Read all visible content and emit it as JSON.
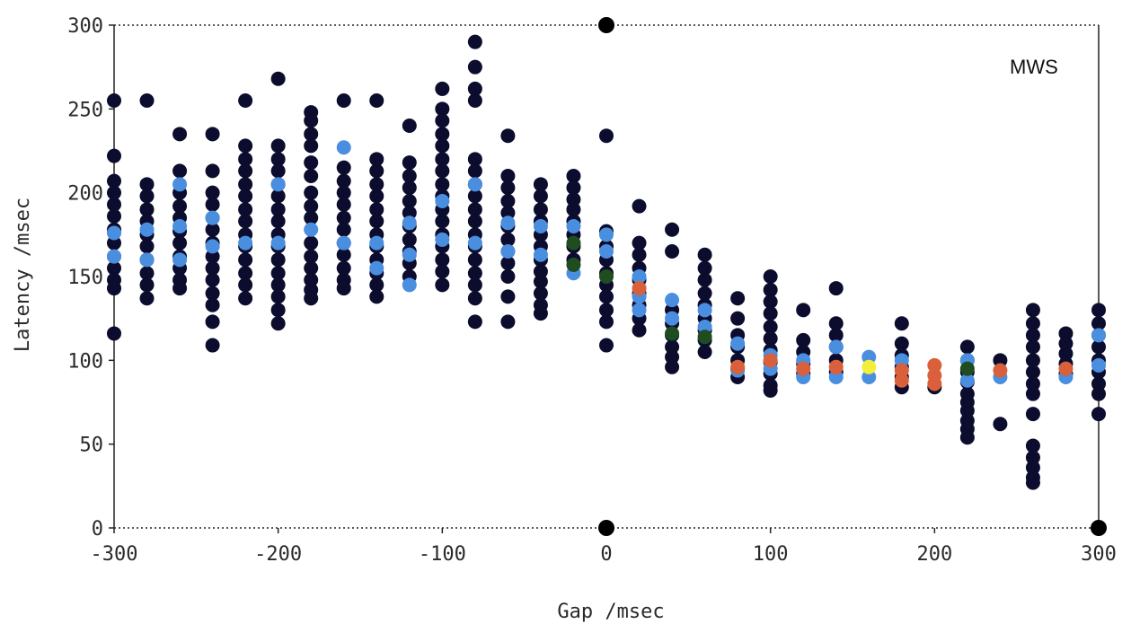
{
  "chart_data": {
    "type": "scatter",
    "title": "",
    "annotation": "MWS",
    "xlabel": "Gap /msec",
    "ylabel": "Latency /msec",
    "xlim": [
      -300,
      300
    ],
    "ylim": [
      0,
      300
    ],
    "xticks": [
      -300,
      -200,
      -100,
      0,
      100,
      200,
      300
    ],
    "xtick_labels": [
      "-300",
      "-200",
      "-100",
      "0",
      "100",
      "200",
      "300"
    ],
    "yticks": [
      0,
      50,
      100,
      150,
      200,
      250,
      300
    ],
    "ytick_labels": [
      "0",
      "50",
      "100",
      "150",
      "200",
      "250",
      "300"
    ],
    "grid": false,
    "legend": "none",
    "colors": {
      "dark": "#0b0c2e",
      "blue": "#4a8ee0",
      "green": "#1f4d1f",
      "red": "#d9603a",
      "yellow": "#f2ee3a",
      "axis": "#222222"
    },
    "columns": [
      {
        "x": -300,
        "dark": [
          255,
          222,
          207,
          200,
          193,
          186,
          178,
          170,
          162,
          155,
          148,
          143,
          116
        ],
        "blue": [
          176,
          162
        ]
      },
      {
        "x": -280,
        "dark": [
          255,
          205,
          198,
          190,
          183,
          175,
          168,
          160,
          152,
          145,
          137
        ],
        "blue": [
          178,
          160
        ]
      },
      {
        "x": -260,
        "dark": [
          235,
          213,
          200,
          192,
          185,
          177,
          170,
          162,
          155,
          148,
          143
        ],
        "blue": [
          205,
          180,
          160
        ]
      },
      {
        "x": -240,
        "dark": [
          235,
          213,
          200,
          193,
          185,
          178,
          170,
          162,
          155,
          148,
          140,
          133,
          123,
          109
        ],
        "blue": [
          185,
          168
        ]
      },
      {
        "x": -220,
        "dark": [
          255,
          228,
          220,
          213,
          205,
          198,
          190,
          183,
          175,
          168,
          160,
          152,
          145,
          137
        ],
        "blue": [
          170
        ]
      },
      {
        "x": -200,
        "dark": [
          268,
          228,
          220,
          213,
          205,
          198,
          190,
          183,
          175,
          168,
          160,
          152,
          145,
          138,
          130,
          122
        ],
        "blue": [
          205,
          170
        ]
      },
      {
        "x": -180,
        "dark": [
          248,
          243,
          235,
          228,
          218,
          210,
          200,
          192,
          185,
          170,
          162,
          155,
          148,
          142,
          137
        ],
        "blue": [
          178
        ]
      },
      {
        "x": -160,
        "dark": [
          255,
          215,
          207,
          200,
          193,
          185,
          178,
          170,
          163,
          155,
          148,
          143
        ],
        "blue": [
          227,
          170
        ]
      },
      {
        "x": -140,
        "dark": [
          255,
          220,
          213,
          205,
          198,
          190,
          183,
          175,
          168,
          160,
          152,
          145,
          138
        ],
        "blue": [
          170,
          155
        ]
      },
      {
        "x": -120,
        "dark": [
          240,
          218,
          210,
          203,
          195,
          188,
          180,
          172,
          165,
          158,
          150
        ],
        "blue": [
          182,
          163,
          145
        ]
      },
      {
        "x": -100,
        "dark": [
          262,
          250,
          243,
          235,
          228,
          220,
          213,
          205,
          198,
          190,
          183,
          175,
          168,
          160,
          153,
          145
        ],
        "blue": [
          195,
          172
        ]
      },
      {
        "x": -80,
        "dark": [
          290,
          275,
          262,
          255,
          220,
          213,
          205,
          198,
          190,
          183,
          175,
          168,
          160,
          152,
          145,
          137,
          123
        ],
        "blue": [
          205,
          170
        ]
      },
      {
        "x": -60,
        "dark": [
          234,
          210,
          203,
          195,
          188,
          180,
          172,
          165,
          158,
          150,
          138,
          123
        ],
        "blue": [
          182,
          165
        ]
      },
      {
        "x": -40,
        "dark": [
          205,
          198,
          190,
          183,
          175,
          168,
          160,
          153,
          147,
          140,
          133,
          128
        ],
        "blue": [
          180,
          163
        ]
      },
      {
        "x": -20,
        "dark": [
          210,
          203,
          196,
          190,
          183,
          175,
          168,
          160
        ],
        "blue": [
          180,
          152
        ],
        "green": [
          170,
          157
        ]
      },
      {
        "x": 0,
        "dark": [
          234,
          177,
          168,
          160,
          152,
          145,
          138,
          130,
          123,
          109
        ],
        "blue": [
          175,
          165
        ],
        "green": [
          150
        ]
      },
      {
        "x": 20,
        "dark": [
          192,
          170,
          163,
          155,
          148,
          140,
          133,
          125,
          118
        ],
        "blue": [
          150,
          138,
          130
        ],
        "red": [
          143
        ]
      },
      {
        "x": 40,
        "dark": [
          178,
          165,
          130,
          122,
          115,
          108,
          102,
          96
        ],
        "blue": [
          136,
          125
        ],
        "green": [
          116
        ]
      },
      {
        "x": 60,
        "dark": [
          163,
          155,
          148,
          140,
          133,
          125,
          118,
          112,
          105
        ],
        "blue": [
          130,
          120
        ],
        "green": [
          114
        ]
      },
      {
        "x": 80,
        "dark": [
          137,
          125,
          115,
          108,
          100,
          95,
          90
        ],
        "blue": [
          110,
          94
        ],
        "red": [
          96
        ]
      },
      {
        "x": 100,
        "dark": [
          150,
          142,
          135,
          128,
          120,
          113,
          106,
          99,
          92,
          85,
          82
        ],
        "blue": [
          103,
          95
        ],
        "red": [
          100
        ]
      },
      {
        "x": 120,
        "dark": [
          130,
          112,
          105,
          98,
          92
        ],
        "blue": [
          100,
          90
        ],
        "red": [
          95
        ]
      },
      {
        "x": 140,
        "dark": [
          143,
          122,
          115,
          108,
          100,
          93
        ],
        "blue": [
          108,
          90
        ],
        "red": [
          96
        ]
      },
      {
        "x": 160,
        "dark": [],
        "blue": [
          102,
          90
        ],
        "yellow": [
          96
        ]
      },
      {
        "x": 180,
        "dark": [
          122,
          110,
          103,
          96,
          90,
          84
        ],
        "blue": [
          100
        ],
        "red": [
          94,
          88
        ]
      },
      {
        "x": 200,
        "dark": [
          84
        ],
        "blue": [],
        "red": [
          97,
          91,
          86
        ]
      },
      {
        "x": 220,
        "dark": [
          108,
          100,
          93,
          87,
          80,
          75,
          70,
          64,
          59,
          54
        ],
        "blue": [
          100,
          88
        ],
        "green": [
          95
        ]
      },
      {
        "x": 240,
        "dark": [
          100,
          62
        ],
        "blue": [
          90
        ],
        "red": [
          94
        ]
      },
      {
        "x": 260,
        "dark": [
          130,
          122,
          115,
          108,
          100,
          93,
          86,
          80,
          68,
          49,
          42,
          36,
          30,
          27
        ],
        "blue": [],
        "red": []
      },
      {
        "x": 280,
        "dark": [
          116,
          110,
          104,
          98,
          92
        ],
        "blue": [
          90
        ],
        "red": [
          95
        ]
      },
      {
        "x": 300,
        "dark": [
          130,
          122,
          115,
          108,
          100,
          93,
          86,
          80,
          68
        ],
        "blue": [
          115,
          97
        ],
        "red": []
      }
    ],
    "axis_markers": [
      {
        "x": 0,
        "y": 300
      },
      {
        "x": 0,
        "y": 0
      },
      {
        "x": 300,
        "y": 0
      }
    ]
  }
}
